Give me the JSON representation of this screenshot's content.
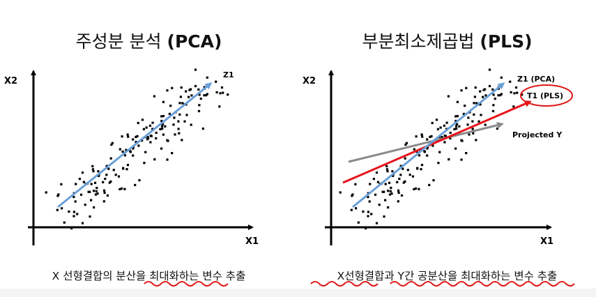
{
  "left": {
    "title_kr": "주성분 분석",
    "title_en": "(PCA)",
    "x_axis": "X1",
    "y_axis": "X2",
    "line_label": "Z1",
    "caption": "X 선형결합의 분산을 최대화하는 변수 추출"
  },
  "right": {
    "title_kr": "부분최소제곱법",
    "title_en": "(PLS)",
    "x_axis": "X1",
    "y_axis": "X2",
    "pca_label": "Z1 (PCA)",
    "pls_label": "T1 (PLS)",
    "proj_label": "Projected Y",
    "caption": "X선형결합과 Y간 공분산을 최대화하는 변수 추출"
  },
  "colors": {
    "pca_line": "#6a9fd8",
    "pls_line": "#e8121a",
    "proj_line": "#8a8a8a",
    "annotation": "#e01616",
    "points": "#000000"
  }
}
